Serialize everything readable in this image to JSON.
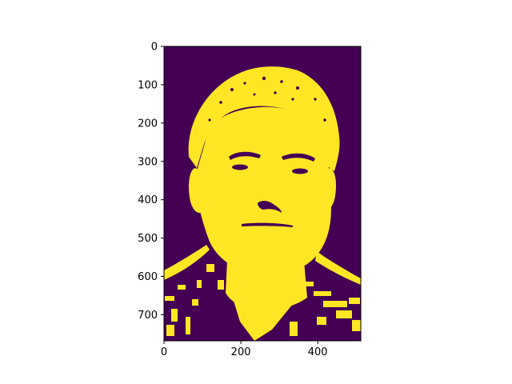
{
  "chart_data": {
    "type": "heatmap",
    "title": "",
    "xlabel": "",
    "ylabel": "",
    "xlim": [
      0,
      512
    ],
    "ylim": [
      768,
      0
    ],
    "x_ticks": [
      0,
      200,
      400
    ],
    "y_ticks": [
      0,
      100,
      200,
      300,
      400,
      500,
      600,
      700
    ],
    "x_tick_labels": [
      "0",
      "200",
      "400"
    ],
    "y_tick_labels": [
      "0",
      "100",
      "200",
      "300",
      "400",
      "500",
      "600",
      "700"
    ],
    "values_description_encoding": "binary",
    "colors": {
      "low": "#440154",
      "high": "#fde725"
    },
    "grid": false,
    "legend": "none"
  }
}
